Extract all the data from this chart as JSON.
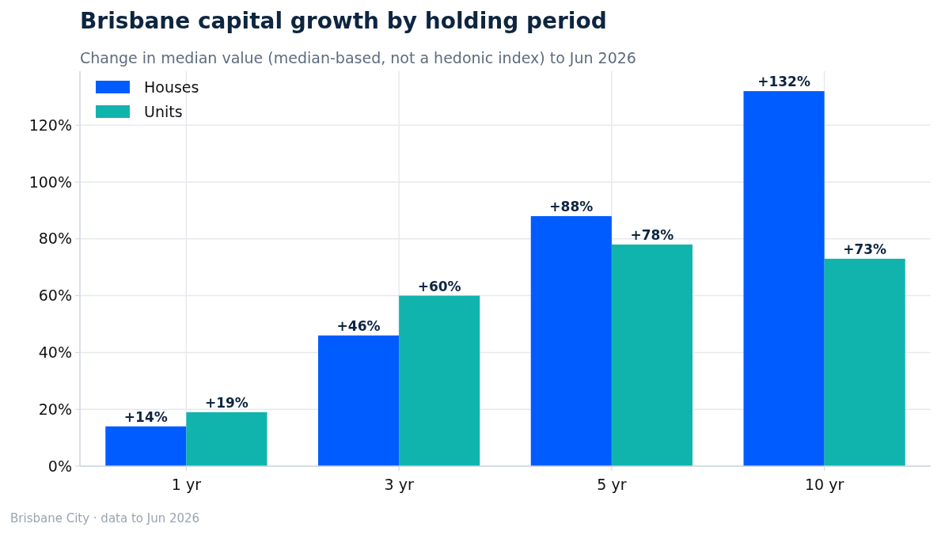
{
  "chart_data": {
    "type": "bar",
    "title": "Brisbane capital growth by holding period",
    "subtitle": "Change in median value (median-based, not a hedonic index) to Jun 2026",
    "categories": [
      "1 yr",
      "3 yr",
      "5 yr",
      "10 yr"
    ],
    "series": [
      {
        "name": "Houses",
        "color": "#005cff",
        "values": [
          14,
          46,
          88,
          132
        ],
        "value_labels": [
          "+14%",
          "+46%",
          "+88%",
          "+132%"
        ]
      },
      {
        "name": "Units",
        "color": "#10b4ad",
        "values": [
          19,
          60,
          78,
          73
        ],
        "value_labels": [
          "+19%",
          "+60%",
          "+78%",
          "+73%"
        ]
      }
    ],
    "ylim": [
      0,
      139
    ],
    "yticks": [
      {
        "value": 0,
        "label": "0%"
      },
      {
        "value": 20,
        "label": "20%"
      },
      {
        "value": 40,
        "label": "40%"
      },
      {
        "value": 60,
        "label": "60%"
      },
      {
        "value": 80,
        "label": "80%"
      },
      {
        "value": 100,
        "label": "100%"
      },
      {
        "value": 120,
        "label": "120%"
      }
    ],
    "grid": true,
    "legend": "top left",
    "annotations": [
      "Brisbane City  ·  data to Jun 2026"
    ]
  }
}
